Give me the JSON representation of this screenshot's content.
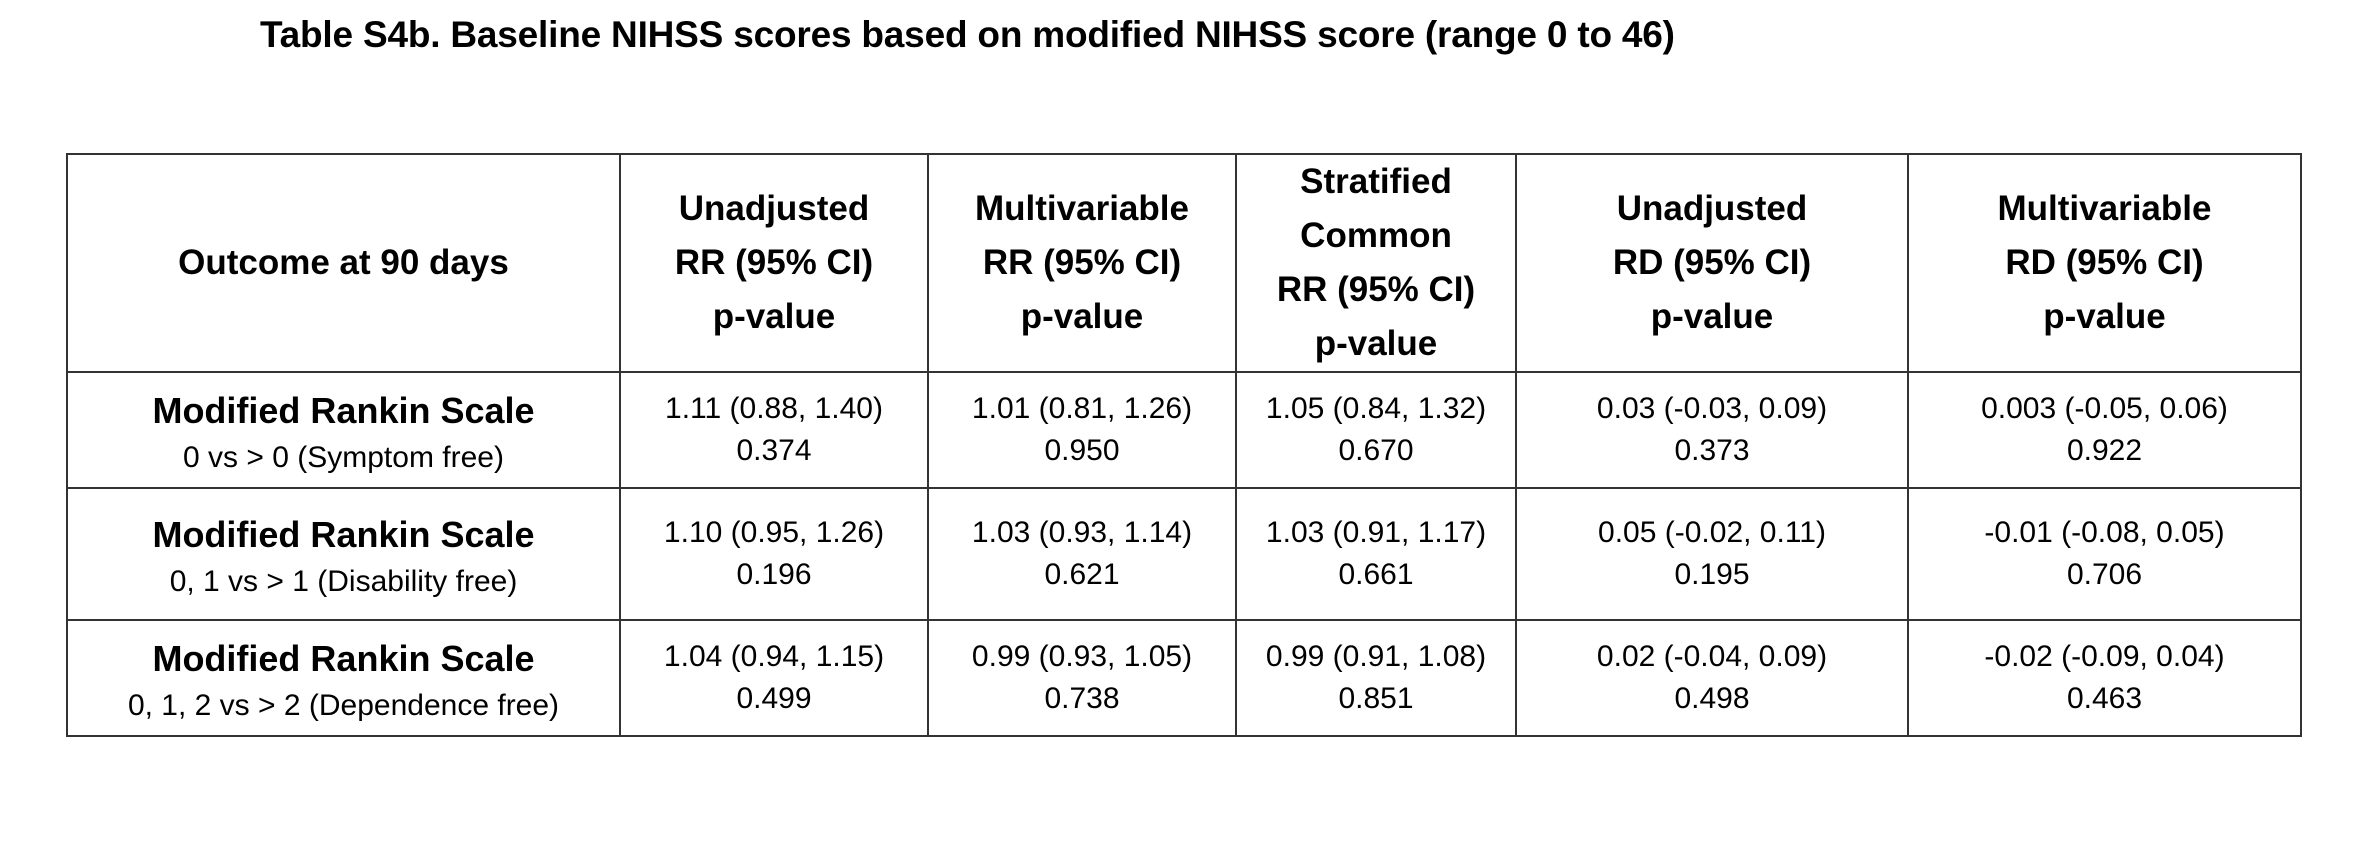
{
  "caption": "Table S4b. Baseline NIHSS scores based on modified NIHSS score (range 0 to 46)",
  "table": {
    "headers": [
      {
        "lines": [
          "Outcome at 90 days"
        ]
      },
      {
        "lines": [
          "Unadjusted",
          "RR (95% CI)",
          "p-value"
        ]
      },
      {
        "lines": [
          "Multivariable",
          "RR (95% CI)",
          "p-value"
        ]
      },
      {
        "lines": [
          "Stratified",
          "Common",
          "RR (95% CI)",
          "p-value"
        ]
      },
      {
        "lines": [
          "Unadjusted",
          "RD (95% CI)",
          "p-value"
        ]
      },
      {
        "lines": [
          "Multivariable",
          "RD (95% CI)",
          "p-value"
        ]
      }
    ],
    "rows": [
      {
        "name": "Modified Rankin Scale",
        "desc": "0 vs > 0 (Symptom free)",
        "cells": [
          {
            "est": "1.11 (0.88, 1.40)",
            "p": "0.374"
          },
          {
            "est": "1.01 (0.81, 1.26)",
            "p": "0.950"
          },
          {
            "est": "1.05 (0.84, 1.32)",
            "p": "0.670"
          },
          {
            "est": "0.03 (-0.03, 0.09)",
            "p": "0.373"
          },
          {
            "est": "0.003 (-0.05, 0.06)",
            "p": "0.922"
          }
        ]
      },
      {
        "name": "Modified Rankin Scale",
        "desc": "0, 1 vs > 1 (Disability free)",
        "cells": [
          {
            "est": "1.10 (0.95, 1.26)",
            "p": "0.196"
          },
          {
            "est": "1.03 (0.93, 1.14)",
            "p": "0.621"
          },
          {
            "est": "1.03 (0.91, 1.17)",
            "p": "0.661"
          },
          {
            "est": "0.05 (-0.02, 0.11)",
            "p": "0.195"
          },
          {
            "est": "-0.01 (-0.08, 0.05)",
            "p": "0.706"
          }
        ]
      },
      {
        "name": "Modified Rankin Scale",
        "desc": "0, 1, 2 vs > 2 (Dependence free)",
        "cells": [
          {
            "est": "1.04 (0.94, 1.15)",
            "p": "0.499"
          },
          {
            "est": "0.99 (0.93, 1.05)",
            "p": "0.738"
          },
          {
            "est": "0.99 (0.91, 1.08)",
            "p": "0.851"
          },
          {
            "est": "0.02 (-0.04, 0.09)",
            "p": "0.498"
          },
          {
            "est": "-0.02 (-0.09, 0.04)",
            "p": "0.463"
          }
        ]
      }
    ]
  }
}
